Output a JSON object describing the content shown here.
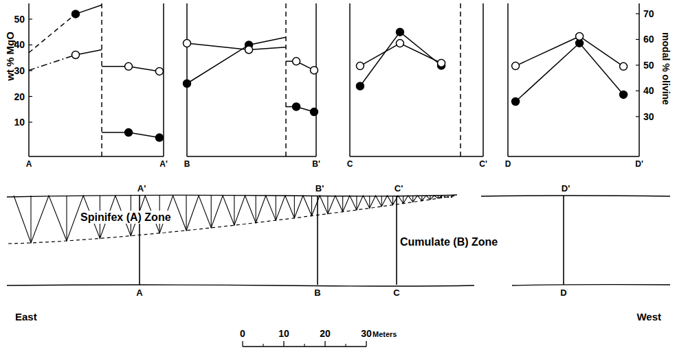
{
  "chart_data": [
    {
      "type": "line",
      "color": "#000000",
      "xlim": [
        0,
        100
      ],
      "xticks": [
        {
          "value": 0,
          "label": "A"
        },
        {
          "value": 100,
          "label": "A'"
        }
      ],
      "ylim": [
        -3.3,
        56.1
      ],
      "yticks": [
        10,
        20,
        30,
        40,
        50
      ],
      "ylabel": "wt % MgO",
      "y2lim": [
        14.5,
        74
      ],
      "series": [
        {
          "axis": "y",
          "marker": "none",
          "line_style": "dashed",
          "x": [
            0,
            34.7
          ],
          "values": [
            37,
            52
          ]
        },
        {
          "axis": "y",
          "marker": "none",
          "line_style": "solid",
          "x": [
            34.7,
            54.1,
            null,
            54.1,
            74,
            96.9
          ],
          "values": [
            52,
            55.5,
            null,
            6,
            6,
            4
          ]
        },
        {
          "axis": "y",
          "marker": "filled-circle",
          "line_style": "none",
          "x": [
            34.7,
            74,
            96.9
          ],
          "values": [
            52,
            6,
            4
          ]
        },
        {
          "axis": "y2",
          "marker": "none",
          "line_style": "dash-dot",
          "x": [
            0,
            34.7
          ],
          "values": [
            48,
            54
          ]
        },
        {
          "axis": "y2",
          "marker": "none",
          "line_style": "solid",
          "x": [
            34.7,
            54.1,
            null,
            54.1,
            74,
            96.9
          ],
          "values": [
            54,
            56,
            null,
            49.5,
            49.5,
            47.6
          ]
        },
        {
          "axis": "y2",
          "marker": "open-circle",
          "line_style": "none",
          "x": [
            34.7,
            74,
            96.9
          ],
          "values": [
            54,
            49.5,
            47.6
          ]
        },
        {
          "type": "vline",
          "line_style": "dashed",
          "x": [
            54.1
          ]
        }
      ]
    },
    {
      "type": "line",
      "color": "#000000",
      "tick_labels": "x",
      "xlim": [
        0,
        100
      ],
      "xticks": [
        {
          "value": 0,
          "label": "B"
        },
        {
          "value": 100,
          "label": "B'"
        }
      ],
      "ylim": [
        -3.3,
        56.1
      ],
      "y2lim": [
        14.5,
        74
      ],
      "series": [
        {
          "axis": "y",
          "marker": "none",
          "line_style": "solid",
          "x": [
            0,
            47.9,
            76.6,
            null,
            76.6,
            84.6,
            98.4
          ],
          "values": [
            25,
            40,
            43,
            null,
            16,
            16,
            14
          ]
        },
        {
          "axis": "y",
          "marker": "filled-circle",
          "line_style": "none",
          "x": [
            0,
            47.9,
            84.6,
            98.4
          ],
          "values": [
            25,
            40,
            16,
            14
          ]
        },
        {
          "axis": "y2",
          "marker": "none",
          "line_style": "solid",
          "x": [
            0,
            47.9,
            76.6,
            null,
            76.6,
            84.6,
            98.4
          ],
          "values": [
            58.5,
            56,
            57,
            null,
            51.5,
            51.5,
            48
          ]
        },
        {
          "axis": "y2",
          "marker": "open-circle",
          "line_style": "none",
          "x": [
            0,
            47.9,
            84.6,
            98.4
          ],
          "values": [
            58.5,
            56,
            51.5,
            48
          ]
        },
        {
          "type": "vline",
          "line_style": "dashed",
          "x": [
            76.6
          ]
        }
      ]
    },
    {
      "type": "line",
      "color": "#000000",
      "tick_labels": "x",
      "xlim": [
        0,
        100
      ],
      "xticks": [
        {
          "value": 0,
          "label": "C"
        },
        {
          "value": 100,
          "label": "C'"
        }
      ],
      "ylim": [
        -3.3,
        56.1
      ],
      "y2lim": [
        14.5,
        74
      ],
      "series": [
        {
          "axis": "y",
          "marker": "filled-circle",
          "line_style": "solid",
          "x": [
            7.7,
            37.6,
            68.6
          ],
          "values": [
            24,
            45,
            32
          ]
        },
        {
          "axis": "y2",
          "marker": "open-circle",
          "line_style": "solid",
          "x": [
            7.7,
            37.6,
            68.6
          ],
          "values": [
            49.7,
            58.5,
            50.8
          ]
        },
        {
          "type": "vline",
          "line_style": "dashed",
          "x": [
            83
          ]
        }
      ]
    },
    {
      "type": "line",
      "color": "#000000",
      "xlim": [
        0,
        100
      ],
      "xticks": [
        {
          "value": 0,
          "label": "D"
        },
        {
          "value": 100,
          "label": "D'"
        }
      ],
      "ylim": [
        -3.3,
        56.1
      ],
      "y2lim": [
        14.5,
        74
      ],
      "y2ticks": [
        30,
        40,
        50,
        60,
        70
      ],
      "y2label": "modal % olivine",
      "series": [
        {
          "axis": "y",
          "marker": "filled-circle",
          "line_style": "solid",
          "x": [
            5.8,
            54.5,
            88
          ],
          "values": [
            18,
            40.7,
            20.7
          ]
        },
        {
          "axis": "y2",
          "marker": "open-circle",
          "line_style": "solid",
          "x": [
            5.8,
            54.5,
            88
          ],
          "values": [
            49.7,
            61.2,
            49.5
          ]
        }
      ]
    }
  ],
  "diagram": {
    "zones": [
      "Spinifex (A) Zone",
      "Cumulate (B) Zone"
    ],
    "sections": [
      {
        "bottom": "A",
        "top": "A'"
      },
      {
        "bottom": "B",
        "top": "B'"
      },
      {
        "bottom": "C",
        "top": "C'"
      },
      {
        "bottom": "D",
        "top": "D'"
      }
    ],
    "directions": [
      "East",
      "West"
    ]
  },
  "scale_bar": {
    "xlim": [
      0,
      30
    ],
    "xticks": [
      0,
      10,
      20,
      30
    ],
    "minor_ticks": [
      5,
      15,
      25
    ],
    "unit": "Meters"
  }
}
